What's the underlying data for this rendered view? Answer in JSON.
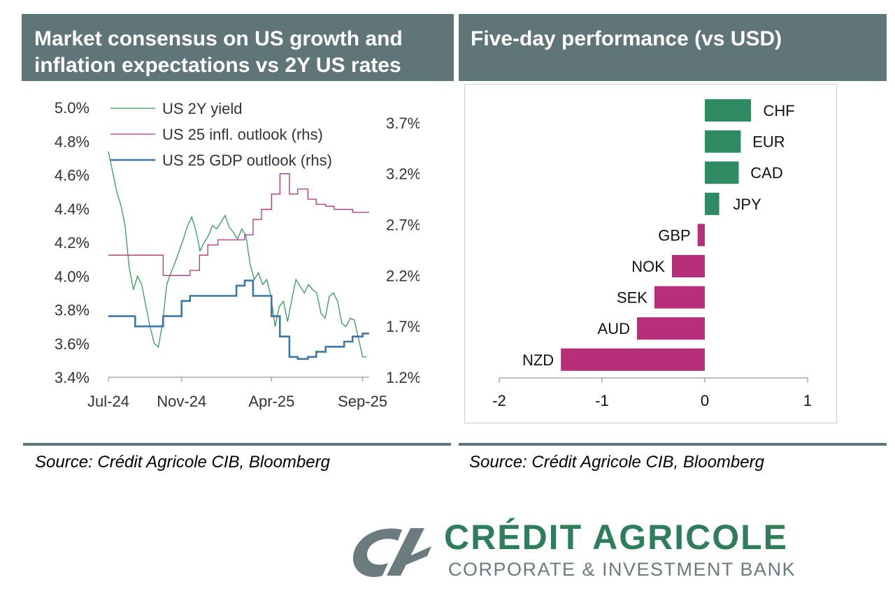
{
  "left_panel": {
    "title": "Market consensus on US growth and inflation expectations vs 2Y US rates",
    "source": "Source: Crédit Agricole CIB, Bloomberg"
  },
  "right_panel": {
    "title": "Five-day performance (vs USD)",
    "source": "Source: Crédit Agricole CIB, Bloomberg"
  },
  "logo": {
    "title": "CRÉDIT AGRICOLE",
    "subtitle": "CORPORATE & INVESTMENT BANK",
    "colors": {
      "green": "#2e7d5b",
      "grey": "#6b7b7e"
    }
  },
  "colors": {
    "header_bg": "#5f7578",
    "us2y": "#3a9a57",
    "infl": "#b5307a",
    "gdp": "#3b78a8",
    "positive_bar": "#2e8b63",
    "negative_bar": "#b92e78"
  },
  "chart_data": [
    {
      "type": "line",
      "xlabel": "",
      "ylabel": "",
      "x_ticks": [
        "Jul-24",
        "Nov-24",
        "Apr-25",
        "Sep-25"
      ],
      "y_left": {
        "ticks": [
          "5.0%",
          "4.8%",
          "4.6%",
          "4.4%",
          "4.2%",
          "4.0%",
          "3.8%",
          "3.6%",
          "3.4%"
        ],
        "ylim": [
          3.4,
          5.0
        ]
      },
      "y_right": {
        "ticks": [
          "3.7%",
          "3.2%",
          "2.7%",
          "2.2%",
          "1.7%",
          "1.2%"
        ],
        "ylim": [
          1.2,
          3.85
        ]
      },
      "legend_position": "top-left",
      "series": [
        {
          "name": "US 2Y yield",
          "axis": "left",
          "x": [
            "2024-07-01",
            "2024-07-08",
            "2024-07-15",
            "2024-07-22",
            "2024-07-29",
            "2024-08-05",
            "2024-08-12",
            "2024-08-19",
            "2024-08-26",
            "2024-09-02",
            "2024-09-09",
            "2024-09-16",
            "2024-09-23",
            "2024-09-30",
            "2024-10-07",
            "2024-10-14",
            "2024-10-21",
            "2024-10-28",
            "2024-11-04",
            "2024-11-11",
            "2024-11-18",
            "2024-11-25",
            "2024-12-02",
            "2024-12-09",
            "2024-12-16",
            "2024-12-23",
            "2024-12-30",
            "2025-01-06",
            "2025-01-13",
            "2025-01-20",
            "2025-01-27",
            "2025-02-03",
            "2025-02-10",
            "2025-02-17",
            "2025-02-24",
            "2025-03-03",
            "2025-03-10",
            "2025-03-17",
            "2025-03-24",
            "2025-03-31",
            "2025-04-07",
            "2025-04-14",
            "2025-04-21",
            "2025-04-28",
            "2025-05-05",
            "2025-05-12",
            "2025-05-19",
            "2025-05-26",
            "2025-06-02",
            "2025-06-09",
            "2025-06-16",
            "2025-06-23",
            "2025-06-30",
            "2025-07-07",
            "2025-07-14",
            "2025-07-21",
            "2025-07-28",
            "2025-08-04",
            "2025-08-11",
            "2025-08-18",
            "2025-08-25",
            "2025-09-01",
            "2025-09-08"
          ],
          "values": [
            4.74,
            4.62,
            4.5,
            4.42,
            4.3,
            4.05,
            3.92,
            4.0,
            3.95,
            3.82,
            3.7,
            3.6,
            3.58,
            3.72,
            3.95,
            4.02,
            4.08,
            4.15,
            4.22,
            4.3,
            4.35,
            4.27,
            4.15,
            4.2,
            4.24,
            4.3,
            4.28,
            4.32,
            4.36,
            4.29,
            4.26,
            4.22,
            4.28,
            4.24,
            4.07,
            3.98,
            4.02,
            3.95,
            3.98,
            3.88,
            3.7,
            3.82,
            3.85,
            3.73,
            3.86,
            3.98,
            3.94,
            3.9,
            3.95,
            3.92,
            3.9,
            3.78,
            3.75,
            3.88,
            3.9,
            3.85,
            3.72,
            3.7,
            3.75,
            3.74,
            3.63,
            3.52,
            3.52
          ]
        },
        {
          "name": "US 25 infl. outlook (rhs)",
          "axis": "right",
          "x": [
            "2024-07-01",
            "2024-09-15",
            "2024-10-01",
            "2024-11-01",
            "2024-11-15",
            "2024-12-01",
            "2024-12-15",
            "2025-01-01",
            "2025-01-15",
            "2025-02-01",
            "2025-02-15",
            "2025-03-01",
            "2025-03-15",
            "2025-04-01",
            "2025-04-15",
            "2025-05-01",
            "2025-05-15",
            "2025-06-01",
            "2025-06-15",
            "2025-07-01",
            "2025-07-15",
            "2025-08-01",
            "2025-08-15",
            "2025-09-01",
            "2025-09-12"
          ],
          "values": [
            2.4,
            2.4,
            2.2,
            2.2,
            2.25,
            2.4,
            2.5,
            2.55,
            2.55,
            2.55,
            2.6,
            2.75,
            2.85,
            3.0,
            3.2,
            3.0,
            3.05,
            2.95,
            2.9,
            2.88,
            2.85,
            2.85,
            2.82,
            2.82,
            2.82
          ]
        },
        {
          "name": "US 25 GDP outlook (rhs)",
          "axis": "right",
          "x": [
            "2024-07-01",
            "2024-08-01",
            "2024-08-15",
            "2024-09-01",
            "2024-09-15",
            "2024-10-01",
            "2024-10-15",
            "2024-11-01",
            "2024-11-15",
            "2024-12-01",
            "2024-12-15",
            "2025-01-01",
            "2025-01-15",
            "2025-02-01",
            "2025-02-15",
            "2025-03-01",
            "2025-03-15",
            "2025-04-01",
            "2025-04-15",
            "2025-05-01",
            "2025-05-15",
            "2025-06-01",
            "2025-06-15",
            "2025-07-01",
            "2025-07-15",
            "2025-08-01",
            "2025-08-15",
            "2025-09-01",
            "2025-09-12"
          ],
          "values": [
            1.8,
            1.8,
            1.7,
            1.7,
            1.7,
            1.8,
            1.8,
            1.95,
            2.0,
            2.0,
            2.0,
            2.0,
            2.0,
            2.1,
            2.15,
            2.0,
            2.0,
            1.8,
            1.6,
            1.4,
            1.38,
            1.4,
            1.45,
            1.5,
            1.5,
            1.55,
            1.6,
            1.63,
            1.63
          ]
        }
      ]
    },
    {
      "type": "bar",
      "orientation": "horizontal",
      "categories": [
        "CHF",
        "EUR",
        "CAD",
        "JPY",
        "GBP",
        "NOK",
        "SEK",
        "AUD",
        "NZD"
      ],
      "values": [
        0.45,
        0.35,
        0.33,
        0.14,
        -0.07,
        -0.32,
        -0.49,
        -0.66,
        -1.4
      ],
      "x_ticks": [
        "-2",
        "-1",
        "0",
        "1"
      ],
      "xlim": [
        -2,
        1
      ],
      "xlabel": "",
      "ylabel": ""
    }
  ]
}
